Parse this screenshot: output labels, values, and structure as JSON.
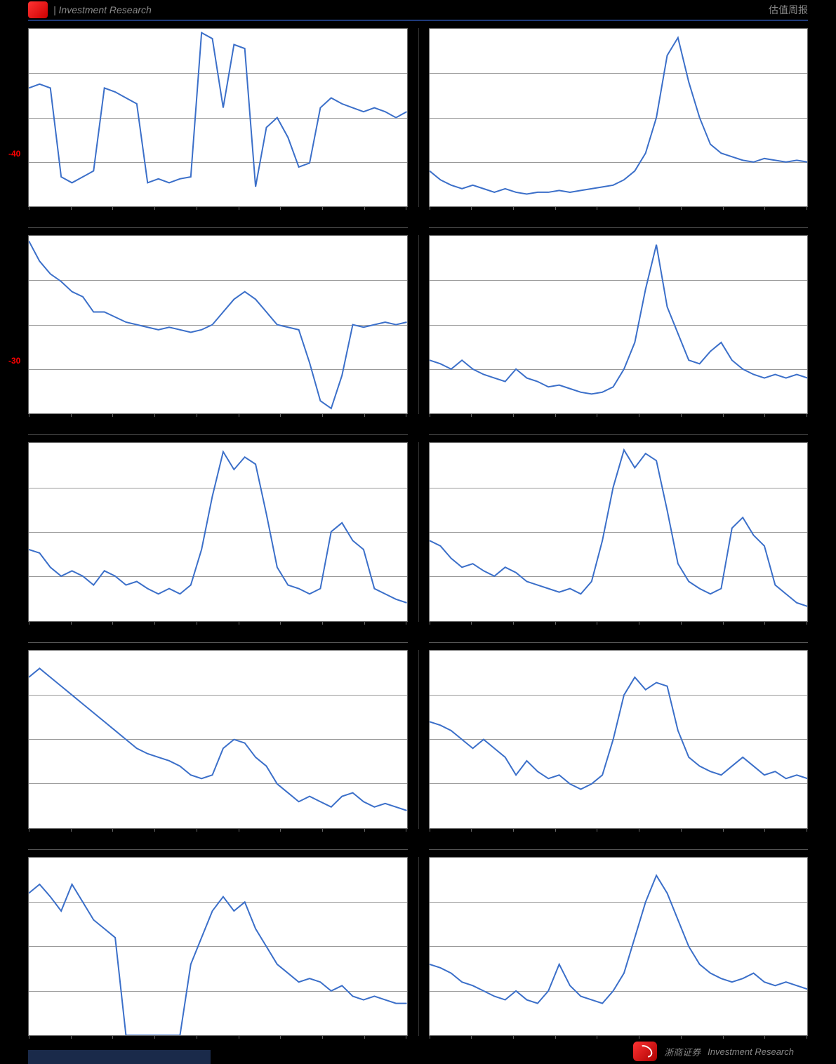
{
  "header": {
    "left_text": "| Investment Research",
    "right_text": "估值周报"
  },
  "footer": {
    "brand": "浙商证券",
    "tagline": "Investment Research"
  },
  "global_style": {
    "line_color": "#3b6fc9",
    "line_width": 2,
    "bg_color": "#ffffff",
    "page_bg": "#000000",
    "grid_color": "#999999",
    "axis_color": "#666666",
    "ylabel_color": "#ff0000",
    "ylabel_fontsize": 12,
    "ntick_x": 10
  },
  "charts": [
    {
      "col": 0,
      "row": 0,
      "type": "line",
      "ylim": [
        -40,
        50
      ],
      "ylabel": "-40",
      "gridlines_pct": [
        25,
        50,
        75
      ],
      "values": [
        20,
        22,
        20,
        -25,
        -28,
        -25,
        -22,
        20,
        18,
        15,
        12,
        -28,
        -26,
        -28,
        -26,
        -25,
        48,
        45,
        10,
        42,
        40,
        -30,
        0,
        5,
        -5,
        -20,
        -18,
        10,
        15,
        12,
        10,
        8,
        10,
        8,
        5,
        8
      ]
    },
    {
      "col": 1,
      "row": 0,
      "type": "line",
      "ylim": [
        0,
        100
      ],
      "gridlines_pct": [
        25,
        50,
        75
      ],
      "values": [
        20,
        15,
        12,
        10,
        12,
        10,
        8,
        10,
        8,
        7,
        8,
        8,
        9,
        8,
        9,
        10,
        11,
        12,
        15,
        20,
        30,
        50,
        85,
        95,
        70,
        50,
        35,
        30,
        28,
        26,
        25,
        27,
        26,
        25,
        26,
        25
      ]
    },
    {
      "col": 0,
      "row": 1,
      "type": "line",
      "ylim": [
        -30,
        40
      ],
      "ylabel": "-30",
      "gridlines_pct": [
        25,
        50,
        75
      ],
      "values": [
        38,
        30,
        25,
        22,
        18,
        16,
        10,
        10,
        8,
        6,
        5,
        4,
        3,
        4,
        3,
        2,
        3,
        5,
        10,
        15,
        18,
        15,
        10,
        5,
        4,
        3,
        -10,
        -25,
        -28,
        -15,
        5,
        4,
        5,
        6,
        5,
        6
      ]
    },
    {
      "col": 1,
      "row": 1,
      "type": "line",
      "ylim": [
        0,
        100
      ],
      "gridlines_pct": [
        25,
        50,
        75
      ],
      "values": [
        30,
        28,
        25,
        30,
        25,
        22,
        20,
        18,
        25,
        20,
        18,
        15,
        16,
        14,
        12,
        11,
        12,
        15,
        25,
        40,
        70,
        95,
        60,
        45,
        30,
        28,
        35,
        40,
        30,
        25,
        22,
        20,
        22,
        20,
        22,
        20
      ]
    },
    {
      "col": 0,
      "row": 2,
      "type": "line",
      "ylim": [
        0,
        100
      ],
      "gridlines_pct": [
        25,
        50,
        75
      ],
      "values": [
        40,
        38,
        30,
        25,
        28,
        25,
        20,
        28,
        25,
        20,
        22,
        18,
        15,
        18,
        15,
        20,
        40,
        70,
        95,
        85,
        92,
        88,
        60,
        30,
        20,
        18,
        15,
        18,
        50,
        55,
        45,
        40,
        18,
        15,
        12,
        10
      ]
    },
    {
      "col": 1,
      "row": 2,
      "type": "line",
      "ylim": [
        0,
        100
      ],
      "gridlines_pct": [
        25,
        50,
        75
      ],
      "values": [
        45,
        42,
        35,
        30,
        32,
        28,
        25,
        30,
        27,
        22,
        20,
        18,
        16,
        18,
        15,
        22,
        45,
        75,
        96,
        86,
        94,
        90,
        62,
        32,
        22,
        18,
        15,
        18,
        52,
        58,
        48,
        42,
        20,
        15,
        10,
        8
      ]
    },
    {
      "col": 0,
      "row": 3,
      "type": "line",
      "ylim": [
        0,
        100
      ],
      "gridlines_pct": [
        25,
        50,
        75
      ],
      "values": [
        85,
        90,
        85,
        80,
        75,
        70,
        65,
        60,
        55,
        50,
        45,
        42,
        40,
        38,
        35,
        30,
        28,
        30,
        45,
        50,
        48,
        40,
        35,
        25,
        20,
        15,
        18,
        15,
        12,
        18,
        20,
        15,
        12,
        14,
        12,
        10
      ]
    },
    {
      "col": 1,
      "row": 3,
      "type": "line",
      "ylim": [
        0,
        100
      ],
      "gridlines_pct": [
        25,
        50,
        75
      ],
      "values": [
        60,
        58,
        55,
        50,
        45,
        50,
        45,
        40,
        30,
        38,
        32,
        28,
        30,
        25,
        22,
        25,
        30,
        50,
        75,
        85,
        78,
        82,
        80,
        55,
        40,
        35,
        32,
        30,
        35,
        40,
        35,
        30,
        32,
        28,
        30,
        28
      ]
    },
    {
      "col": 0,
      "row": 4,
      "type": "line",
      "ylim": [
        0,
        100
      ],
      "gridlines_pct": [
        25,
        50,
        75
      ],
      "values": [
        80,
        85,
        78,
        70,
        85,
        75,
        65,
        60,
        55,
        0,
        0,
        0,
        0,
        0,
        0,
        40,
        55,
        70,
        78,
        70,
        75,
        60,
        50,
        40,
        35,
        30,
        32,
        30,
        25,
        28,
        22,
        20,
        22,
        20,
        18,
        18
      ]
    },
    {
      "col": 1,
      "row": 4,
      "type": "line",
      "ylim": [
        0,
        100
      ],
      "gridlines_pct": [
        25,
        50,
        75
      ],
      "values": [
        40,
        38,
        35,
        30,
        28,
        25,
        22,
        20,
        25,
        20,
        18,
        25,
        40,
        28,
        22,
        20,
        18,
        25,
        35,
        55,
        75,
        90,
        80,
        65,
        50,
        40,
        35,
        32,
        30,
        32,
        35,
        30,
        28,
        30,
        28,
        26
      ]
    }
  ]
}
